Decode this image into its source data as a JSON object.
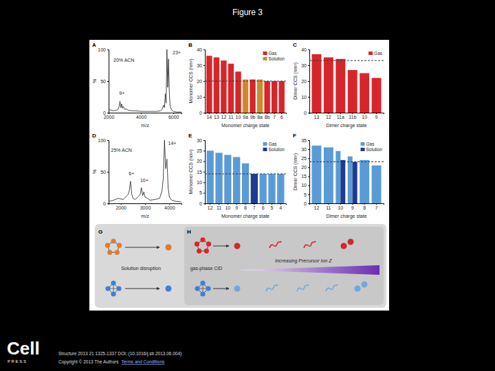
{
  "page": {
    "title": "Figure 3",
    "logo": "Cell",
    "logo_sub": "P R E S S",
    "citation": "Structure 2013 21 1325-1337 DOI: (10.1016/j.str.2013.06.004)",
    "copyright": "Copyright © 2013 The Authors",
    "link": "Terms and Conditions"
  },
  "diagram": {
    "G": {
      "label": "G",
      "text": "Solution disruption"
    },
    "H": {
      "label": "H",
      "cid": "gas-phase CID",
      "gradient": "Increasing Precursor Ion Z"
    }
  },
  "chart_data": [
    {
      "type": "line",
      "panel": "A",
      "xlabel": "m/z",
      "ylabel": "%",
      "color": "#333333",
      "xlim": [
        2000,
        6500
      ],
      "xticks": [
        2000,
        4000,
        6000
      ],
      "ylim": [
        0,
        100
      ],
      "yticks": [
        0,
        50,
        100
      ],
      "x": [
        2000,
        2300,
        2500,
        2600,
        2650,
        2700,
        2750,
        2800,
        2850,
        2900,
        3000,
        3100,
        3200,
        3400,
        3600,
        4000,
        4500,
        5000,
        5200,
        5300,
        5400,
        5450,
        5500,
        5550,
        5600,
        5650,
        5700,
        5750,
        5800,
        5900,
        6000,
        6200,
        6500
      ],
      "values": [
        5,
        3,
        4,
        6,
        10,
        18,
        8,
        14,
        7,
        10,
        5,
        6,
        4,
        3,
        3,
        2,
        2,
        2,
        3,
        5,
        12,
        8,
        30,
        15,
        100,
        40,
        85,
        30,
        10,
        4,
        2,
        1,
        1
      ],
      "annotations": [
        {
          "text": "20% ACN",
          "x": 2300,
          "y": 80
        },
        {
          "text": "23+",
          "x": 5950,
          "y": 92
        },
        {
          "text": "9+",
          "x": 2650,
          "y": 28
        }
      ]
    },
    {
      "type": "bar",
      "panel": "B",
      "xlabel": "Monomer charge state",
      "ylabel": "Monomer CCS (nm²)",
      "legend": "top-right",
      "ylim": [
        0,
        40
      ],
      "yticks": [
        0,
        10,
        20,
        30,
        40
      ],
      "reference": 20,
      "categories": [
        "14",
        "13",
        "12",
        "11",
        "10",
        "9a",
        "9b",
        "8a",
        "8b",
        "7",
        "6"
      ],
      "series": [
        {
          "name": "Gas",
          "color": "#d7262b",
          "values": [
            36,
            35,
            33,
            31,
            26,
            null,
            21,
            null,
            20,
            20,
            20
          ]
        },
        {
          "name": "Solution",
          "color": "#d08a2c",
          "values": [
            null,
            null,
            null,
            null,
            null,
            21,
            null,
            21,
            null,
            null,
            null
          ]
        }
      ]
    },
    {
      "type": "bar",
      "panel": "C",
      "xlabel": "Dimer charge state",
      "ylabel": "Dimer CCS (nm²)",
      "legend": "top-right",
      "ylim": [
        0,
        40
      ],
      "yticks": [
        0,
        10,
        20,
        30,
        40
      ],
      "reference": 33,
      "categories": [
        "13",
        "12",
        "11a",
        "11b",
        "10",
        "9"
      ],
      "series": [
        {
          "name": "Gas",
          "color": "#d7262b",
          "values": [
            37,
            35,
            34,
            27,
            25,
            22
          ]
        }
      ]
    },
    {
      "type": "line",
      "panel": "D",
      "xlabel": "m/z",
      "ylabel": "%",
      "color": "#333333",
      "xlim": [
        1500,
        4500
      ],
      "xticks": [
        2000,
        3000,
        4000
      ],
      "ylim": [
        0,
        100
      ],
      "yticks": [
        0,
        50,
        100
      ],
      "x": [
        1500,
        1700,
        1900,
        2100,
        2200,
        2300,
        2350,
        2400,
        2450,
        2500,
        2600,
        2700,
        2800,
        2850,
        2900,
        2950,
        3000,
        3100,
        3200,
        3400,
        3600,
        3700,
        3750,
        3800,
        3850,
        3900,
        3950,
        4000,
        4100,
        4300,
        4500
      ],
      "values": [
        3,
        5,
        8,
        6,
        10,
        14,
        20,
        35,
        15,
        8,
        6,
        10,
        14,
        25,
        12,
        18,
        10,
        8,
        5,
        6,
        8,
        20,
        40,
        100,
        55,
        70,
        25,
        10,
        5,
        3,
        2
      ],
      "annotations": [
        {
          "text": "25% ACN",
          "x": 1600,
          "y": 82
        },
        {
          "text": "14+",
          "x": 3950,
          "y": 92
        },
        {
          "text": "6+",
          "x": 2330,
          "y": 45
        },
        {
          "text": "10+",
          "x": 2800,
          "y": 34
        }
      ]
    },
    {
      "type": "bar",
      "panel": "E",
      "xlabel": "Monomer charge state",
      "ylabel": "Monomer CCS (nm²)",
      "legend": "top-right",
      "ylim": [
        0,
        30
      ],
      "yticks": [
        0,
        5,
        10,
        15,
        20,
        25,
        30
      ],
      "reference": 14,
      "categories": [
        "12",
        "11",
        "10",
        "9",
        "8",
        "7",
        "6",
        "5",
        "4"
      ],
      "series": [
        {
          "name": "Gas",
          "color": "#5b9bd5",
          "values": [
            25,
            24,
            23,
            22,
            19,
            null,
            14,
            14,
            14
          ]
        },
        {
          "name": "Solution",
          "color": "#1f3b8f",
          "values": [
            null,
            null,
            null,
            null,
            null,
            14,
            null,
            null,
            null
          ]
        }
      ]
    },
    {
      "type": "bar",
      "panel": "F",
      "xlabel": "Dimer charge state",
      "ylabel": "Dimer CCS (nm²)",
      "legend": "top-right",
      "ylim": [
        0,
        35
      ],
      "yticks": [
        0,
        5,
        10,
        15,
        20,
        25,
        30,
        35
      ],
      "reference": 23,
      "categories": [
        "12",
        "11",
        "10",
        "9",
        "8",
        "7"
      ],
      "series": [
        {
          "name": "Gas",
          "color": "#5b9bd5",
          "values": [
            32,
            31,
            29,
            26,
            24,
            21
          ]
        },
        {
          "name": "Solution",
          "color": "#1f3b8f",
          "values": [
            null,
            null,
            24,
            23,
            null,
            null
          ]
        }
      ]
    }
  ]
}
